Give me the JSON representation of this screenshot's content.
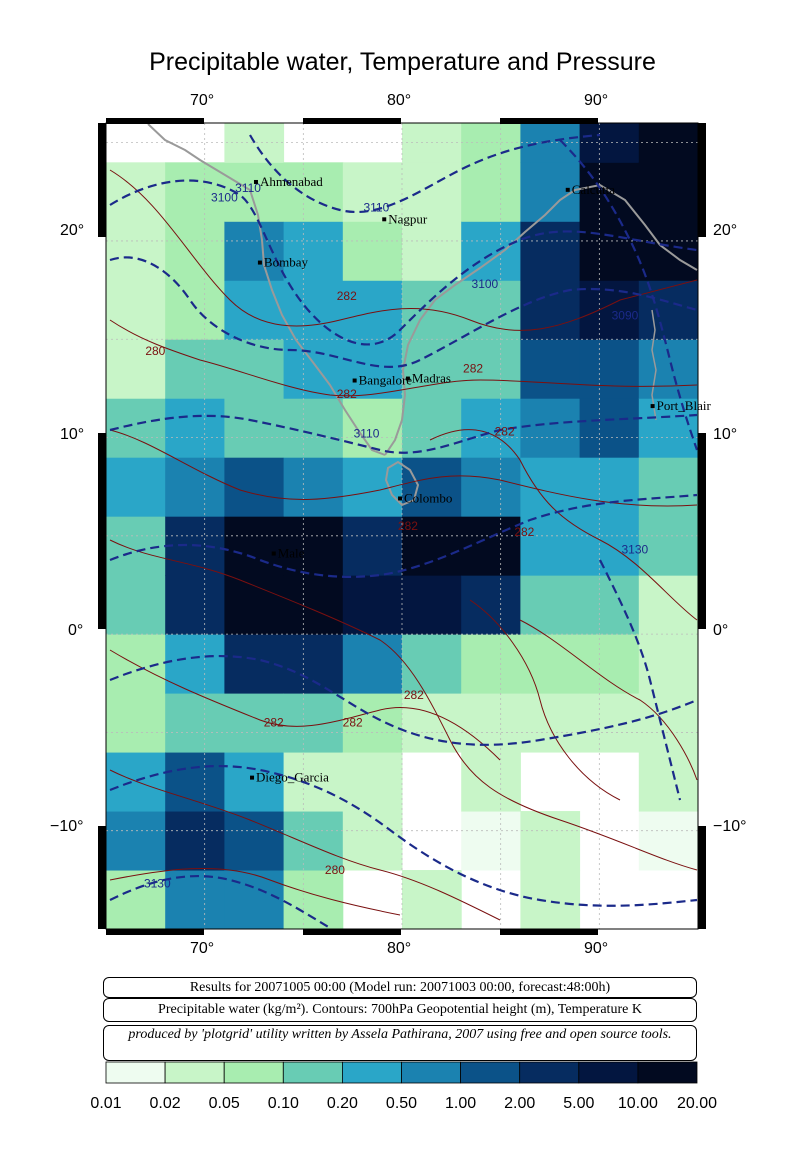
{
  "title": "Precipitable water, Temperature and Pressure",
  "map": {
    "lon_range": [
      65,
      95
    ],
    "lat_range": [
      -15,
      26
    ],
    "lon_ticks": [
      "70°",
      "80°",
      "90°"
    ],
    "lat_ticks_left": [
      "20°",
      "10°",
      "0°",
      "−10°"
    ],
    "lat_ticks_right": [
      "20°",
      "10°",
      "0°",
      "−10°"
    ],
    "cities": [
      {
        "name": "Ahmenabad",
        "lon": 72.6,
        "lat": 23.0
      },
      {
        "name": "Nagpur",
        "lon": 79.1,
        "lat": 21.1
      },
      {
        "name": "Calcutta",
        "lon": 88.4,
        "lat": 22.6
      },
      {
        "name": "Bombay",
        "lon": 72.8,
        "lat": 18.9
      },
      {
        "name": "Bangalore",
        "lon": 77.6,
        "lat": 12.9
      },
      {
        "name": "Madras",
        "lon": 80.3,
        "lat": 13.0
      },
      {
        "name": "Port_Blair",
        "lon": 92.7,
        "lat": 11.6
      },
      {
        "name": "Colombo",
        "lon": 79.9,
        "lat": 6.9
      },
      {
        "name": "Male",
        "lon": 73.5,
        "lat": 4.1
      },
      {
        "name": "Diego_Garcia",
        "lon": 72.4,
        "lat": -7.3
      }
    ],
    "contour_labels": [
      {
        "text": "3100",
        "lon": 71.0,
        "lat": 22.0
      },
      {
        "text": "3110",
        "lon": 72.2,
        "lat": 22.5
      },
      {
        "text": "3110",
        "lon": 78.7,
        "lat": 21.5
      },
      {
        "text": "3100",
        "lon": 84.2,
        "lat": 17.6
      },
      {
        "text": "3090",
        "lon": 91.3,
        "lat": 16.0
      },
      {
        "text": "282",
        "lon": 77.2,
        "lat": 17.0
      },
      {
        "text": "280",
        "lon": 67.5,
        "lat": 14.2
      },
      {
        "text": "282",
        "lon": 77.2,
        "lat": 12.0
      },
      {
        "text": "282",
        "lon": 83.6,
        "lat": 13.3
      },
      {
        "text": "3110",
        "lon": 78.2,
        "lat": 10.0
      },
      {
        "text": "282",
        "lon": 85.2,
        "lat": 10.1
      },
      {
        "text": "282",
        "lon": 80.3,
        "lat": 5.3
      },
      {
        "text": "282",
        "lon": 86.2,
        "lat": 5.0
      },
      {
        "text": "3130",
        "lon": 91.8,
        "lat": 4.1
      },
      {
        "text": "282",
        "lon": 80.6,
        "lat": -3.3
      },
      {
        "text": "282",
        "lon": 73.5,
        "lat": -4.7
      },
      {
        "text": "282",
        "lon": 77.5,
        "lat": -4.7
      },
      {
        "text": "280",
        "lon": 76.6,
        "lat": -12.2
      },
      {
        "text": "3130",
        "lon": 67.6,
        "lat": -12.9
      }
    ]
  },
  "info": {
    "results": "Results for 20071005 00:00 (Model run: 20071003 00:00, forecast:48:00h)",
    "caption": "Precipitable water (kg/m²).  Contours: 700hPa Geopotential height (m), Temperature K",
    "credit": "produced by 'plotgrid' utility written by Assela Pathirana, 2007 using free and open source tools."
  },
  "colorscale": {
    "labels": [
      "0.01",
      "0.02",
      "0.05",
      "0.10",
      "0.20",
      "0.50",
      "1.00",
      "2.00",
      "5.00",
      "10.00",
      "20.00"
    ],
    "colors": [
      "#eefcf0",
      "#c8f5c8",
      "#a8edb0",
      "#68ccb4",
      "#2aa6c8",
      "#1b82b0",
      "#0b5288",
      "#062c60",
      "#031640",
      "#020a20"
    ]
  }
}
